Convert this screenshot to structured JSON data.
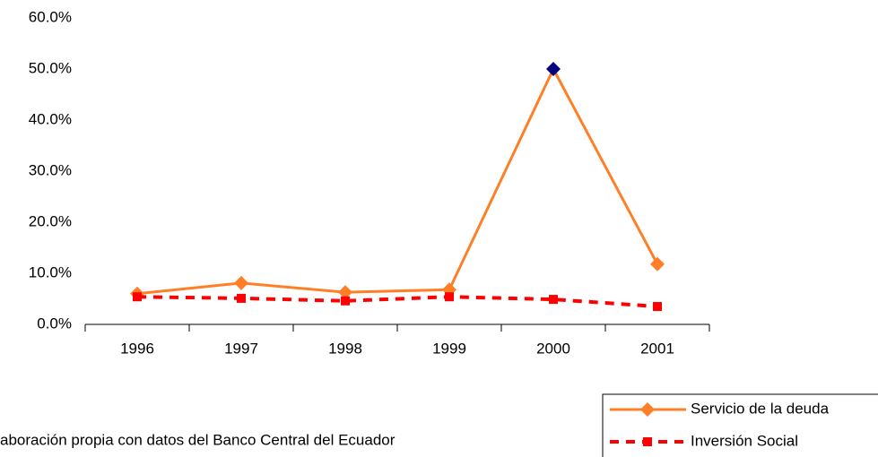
{
  "chart_data": {
    "type": "line",
    "categories": [
      "1996",
      "1997",
      "1998",
      "1999",
      "2000",
      "2001"
    ],
    "series": [
      {
        "name": "Servicio de la deuda",
        "color": "#ff7f27",
        "marker": "diamond",
        "dashed": false,
        "marker_colors": [
          "#ff7f27",
          "#ff7f27",
          "#ff7f27",
          "#ff7f27",
          "#000080",
          "#ff7f27"
        ],
        "values": [
          6.0,
          8.1,
          6.3,
          6.8,
          50.0,
          11.8
        ]
      },
      {
        "name": "Inversión Social",
        "color": "#ff0000",
        "marker": "square",
        "dashed": true,
        "values": [
          5.4,
          5.1,
          4.6,
          5.4,
          4.9,
          3.5
        ]
      }
    ],
    "ylim": [
      0,
      60
    ],
    "yticks": [
      {
        "value": 0,
        "label": "0.0%"
      },
      {
        "value": 10,
        "label": "10.0%"
      },
      {
        "value": 20,
        "label": "20.0%"
      },
      {
        "value": 30,
        "label": "30.0%"
      },
      {
        "value": 40,
        "label": "40.0%"
      },
      {
        "value": 50,
        "label": "50.0%"
      },
      {
        "value": 60,
        "label": "60.0%"
      }
    ],
    "grid": false,
    "legend": "bottom-right",
    "source": "aboración propia con datos del Banco Central del Ecuador"
  }
}
